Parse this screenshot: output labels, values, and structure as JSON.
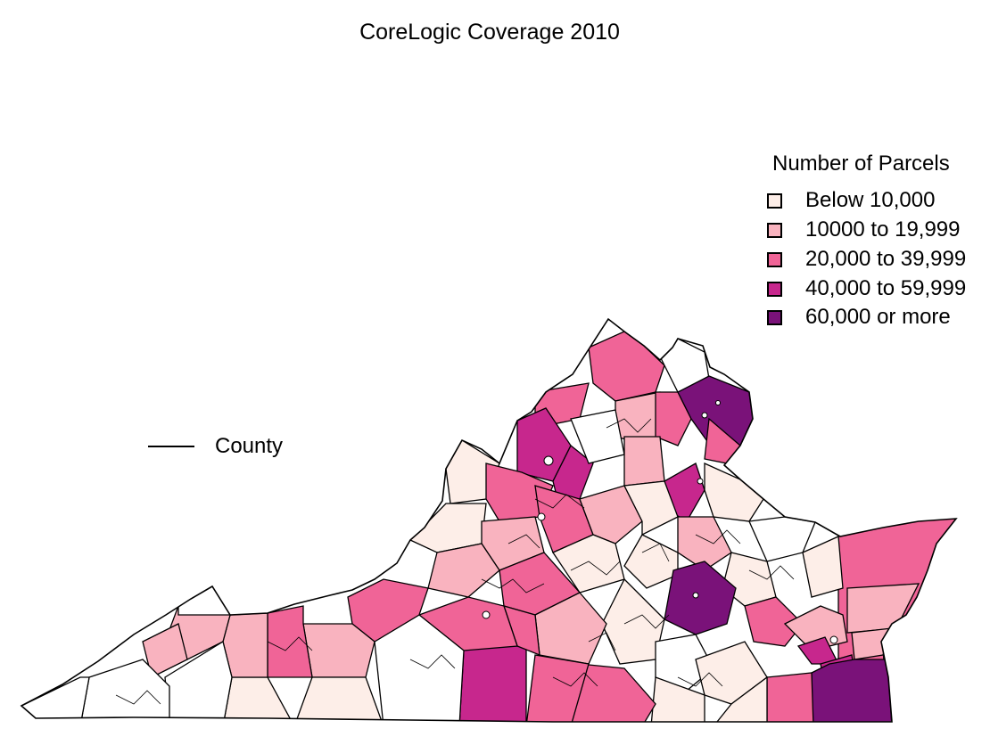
{
  "title": "CoreLogic Coverage 2010",
  "legend": {
    "title": "Number of Parcels",
    "items": [
      {
        "label": "Below 10,000",
        "color": "#fdeee8"
      },
      {
        "label": "10000 to 19,999",
        "color": "#f9b3bf"
      },
      {
        "label": "20,000 to 39,999",
        "color": "#f06497"
      },
      {
        "label": "40,000 to 59,999",
        "color": "#c7278d"
      },
      {
        "label": "60,000 or more",
        "color": "#7a1279"
      }
    ]
  },
  "boundary_legend": {
    "label": "County"
  },
  "map": {
    "region": "Virginia",
    "boundary_color": "#000000",
    "no_data_color": "#ffffff"
  }
}
